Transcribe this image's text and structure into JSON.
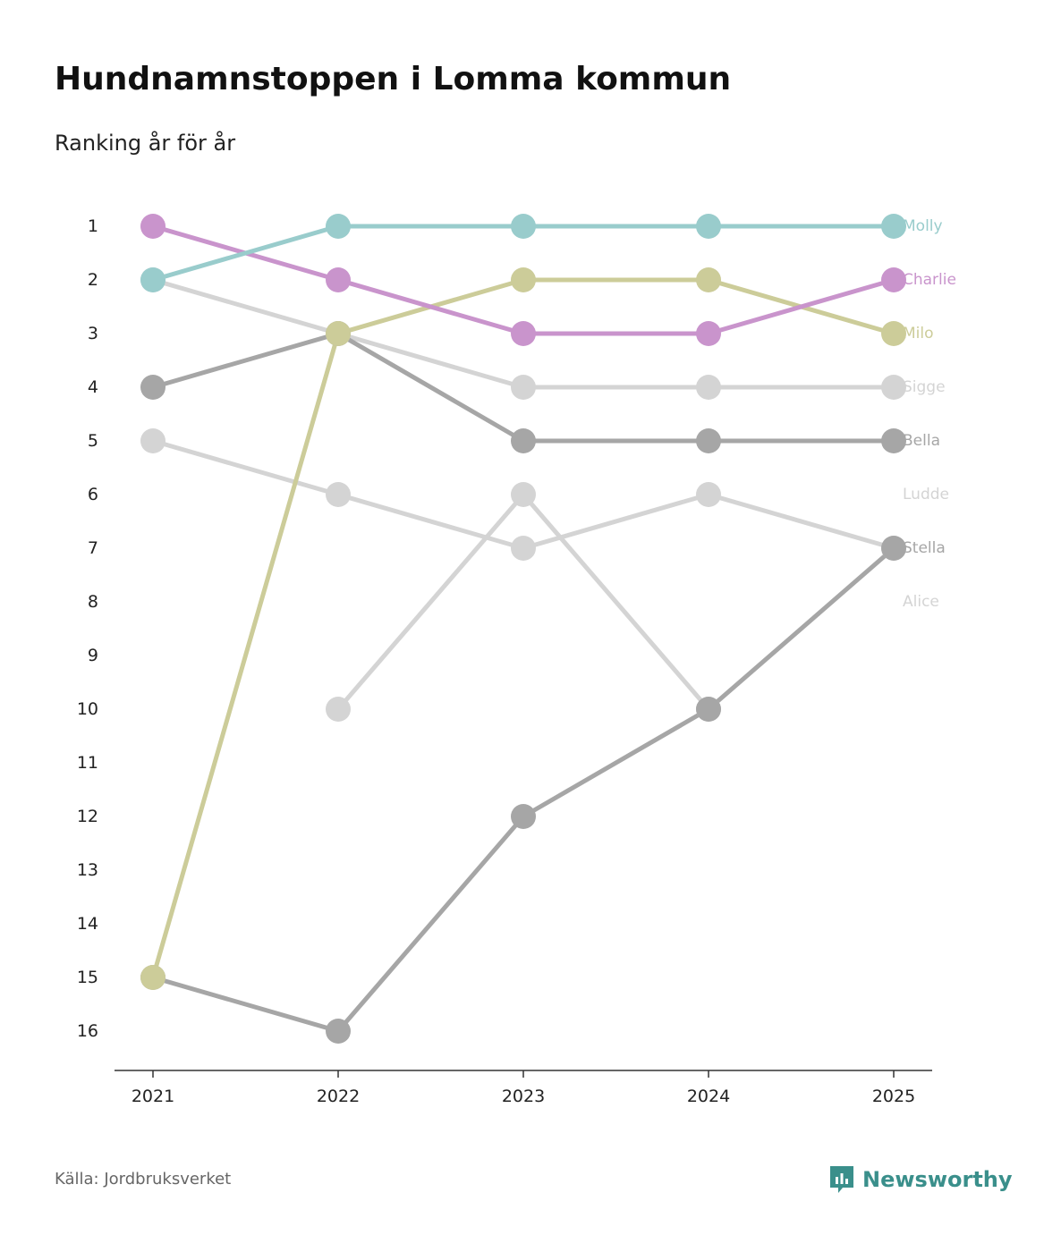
{
  "title": "Hundnamnstoppen i Lomma kommun",
  "subtitle": "Ranking år för år",
  "source": "Källa: Jordbruksverket",
  "brand": "Newsworthy",
  "colors": {
    "brand": "#3a8f8b",
    "axis": "#333333",
    "tick_label": "#222222"
  },
  "chart_data": {
    "type": "line",
    "title": "Hundnamnstoppen i Lomma kommun",
    "subtitle": "Ranking år för år",
    "xlabel": "",
    "ylabel": "",
    "y_inverted": true,
    "ylim": [
      1,
      16
    ],
    "y_ticks": [
      1,
      2,
      3,
      4,
      5,
      6,
      7,
      8,
      9,
      10,
      11,
      12,
      13,
      14,
      15,
      16
    ],
    "x": [
      2021,
      2022,
      2023,
      2024,
      2025
    ],
    "x_labels": [
      "2021",
      "2022",
      "2023",
      "2024",
      "2025"
    ],
    "series": [
      {
        "name": "Alice",
        "values": [
          null,
          10,
          6,
          10,
          null
        ],
        "color": "#d4d4d4"
      },
      {
        "name": "Ludde",
        "values": [
          5,
          6,
          7,
          6,
          7
        ],
        "color": "#d4d4d4"
      },
      {
        "name": "Sigge",
        "values": [
          2,
          3,
          4,
          4,
          4
        ],
        "color": "#d4d4d4"
      },
      {
        "name": "Stella",
        "values": [
          15,
          16,
          12,
          10,
          7
        ],
        "color": "#a6a6a6"
      },
      {
        "name": "Bella",
        "values": [
          4,
          3,
          5,
          5,
          5
        ],
        "color": "#a6a6a6"
      },
      {
        "name": "Milo",
        "values": [
          15,
          3,
          2,
          2,
          3
        ],
        "color": "#cccc99"
      },
      {
        "name": "Charlie",
        "values": [
          1,
          2,
          3,
          3,
          2
        ],
        "color": "#c994cc"
      },
      {
        "name": "Molly",
        "values": [
          2,
          1,
          1,
          1,
          1
        ],
        "color": "#99cccc"
      }
    ],
    "end_labels": [
      {
        "name": "Molly",
        "rank": 1
      },
      {
        "name": "Charlie",
        "rank": 2
      },
      {
        "name": "Milo",
        "rank": 3
      },
      {
        "name": "Sigge",
        "rank": 4
      },
      {
        "name": "Bella",
        "rank": 5
      },
      {
        "name": "Ludde",
        "rank": 6
      },
      {
        "name": "Stella",
        "rank": 7
      },
      {
        "name": "Alice",
        "rank": 8
      }
    ]
  }
}
